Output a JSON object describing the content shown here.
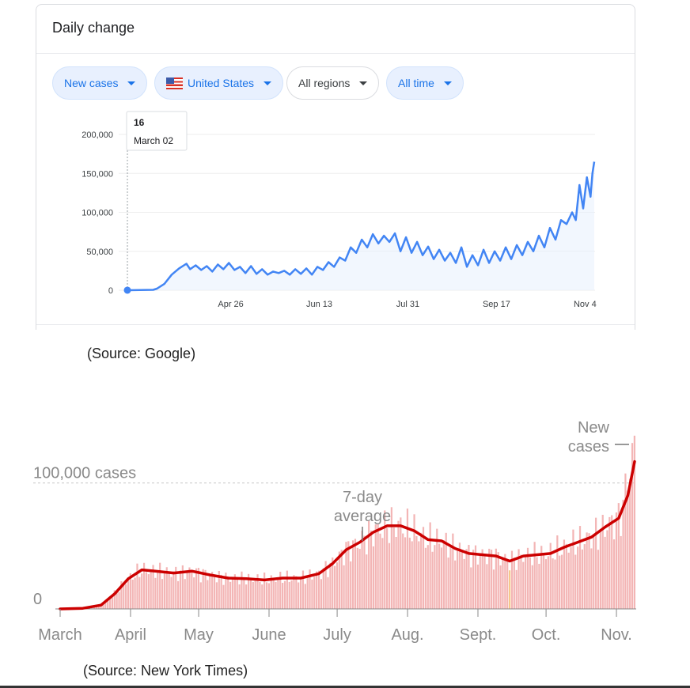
{
  "google_card": {
    "title": "Daily change",
    "filters": [
      {
        "label": "New cases",
        "style": "blue"
      },
      {
        "label": "United States",
        "style": "blue",
        "icon": "us-flag-icon"
      },
      {
        "label": "All regions",
        "style": "white"
      },
      {
        "label": "All time",
        "style": "blue"
      }
    ],
    "tooltip": {
      "value": "16",
      "date": "March 02"
    }
  },
  "google_source": "(Source: Google)",
  "nyt_source": "(Source: New York Times)",
  "colors": {
    "google_line": "#4285f4",
    "google_fill": "#e8f0fe",
    "nyt_line": "#cc0000",
    "nyt_bars": "#f3b5b5",
    "chip_blue_text": "#1a73e8"
  },
  "chart_data": [
    {
      "type": "line",
      "title": "Daily change",
      "ylim": [
        0,
        200000
      ],
      "y_ticks": [
        "0",
        "50,000",
        "100,000",
        "150,000",
        "200,000"
      ],
      "y_tick_values": [
        0,
        50000,
        100000,
        150000,
        200000
      ],
      "x_ticks": [
        "Apr 26",
        "Jun 13",
        "Jul 31",
        "Sep 17",
        "Nov 4"
      ],
      "x_tick_days": [
        56,
        104,
        152,
        200,
        248
      ],
      "grid": true,
      "series": [
        {
          "values_days": [
            0,
            14,
            16,
            20,
            24,
            28,
            32,
            34,
            37,
            40,
            43,
            46,
            49,
            52,
            55,
            58,
            61,
            64,
            67,
            70,
            73,
            76,
            79,
            82,
            85,
            88,
            91,
            94,
            97,
            100,
            103,
            106,
            109,
            112,
            115,
            118,
            121,
            124,
            127,
            130,
            133,
            136,
            139,
            142,
            145,
            148,
            151,
            154,
            157,
            160,
            163,
            166,
            169,
            172,
            175,
            178,
            181,
            184,
            187,
            190,
            193,
            196,
            199,
            202,
            205,
            208,
            211,
            214,
            217,
            220,
            223,
            226,
            229,
            232,
            235,
            238,
            241,
            243,
            245,
            247,
            249,
            251,
            252,
            253
          ],
          "values": [
            16,
            500,
            2000,
            8000,
            20000,
            28000,
            34000,
            27000,
            32000,
            26000,
            31000,
            24000,
            33000,
            27000,
            35000,
            26000,
            30000,
            22000,
            31000,
            21000,
            27000,
            20000,
            24000,
            22000,
            25000,
            20000,
            27000,
            21000,
            28000,
            20000,
            30000,
            26000,
            36000,
            30000,
            42000,
            38000,
            55000,
            48000,
            65000,
            55000,
            72000,
            60000,
            70000,
            62000,
            73000,
            50000,
            68000,
            48000,
            62000,
            45000,
            56000,
            40000,
            52000,
            38000,
            48000,
            35000,
            55000,
            30000,
            45000,
            32000,
            52000,
            35000,
            50000,
            38000,
            55000,
            40000,
            58000,
            45000,
            62000,
            50000,
            70000,
            55000,
            80000,
            65000,
            90000,
            85000,
            100000,
            90000,
            135000,
            105000,
            145000,
            120000,
            150000,
            165000
          ]
        }
      ]
    },
    {
      "type": "bar",
      "ylabel_annotation": "100,000 cases",
      "zero_label": "0",
      "ylim": [
        0,
        135000
      ],
      "y_reference": 100000,
      "x_ticks": [
        "March",
        "April",
        "May",
        "June",
        "July",
        "Aug.",
        "Sept.",
        "Oct.",
        "Nov."
      ],
      "x_tick_days": [
        0,
        31,
        61,
        92,
        122,
        153,
        184,
        214,
        245
      ],
      "annotations": {
        "avg_label_line1": "7-day",
        "avg_label_line2": "average",
        "bars_label_line1": "New",
        "bars_label_line2": "cases"
      },
      "series": [
        {
          "name": "New cases"
        },
        {
          "name": "7-day average",
          "days": [
            0,
            10,
            18,
            24,
            30,
            36,
            42,
            50,
            58,
            66,
            74,
            82,
            90,
            98,
            106,
            114,
            120,
            126,
            132,
            138,
            144,
            150,
            156,
            162,
            168,
            174,
            180,
            186,
            192,
            198,
            204,
            210,
            216,
            222,
            228,
            234,
            240,
            246,
            250,
            253
          ],
          "values": [
            0,
            500,
            3000,
            12000,
            24000,
            31000,
            30000,
            28500,
            30000,
            27000,
            24500,
            24000,
            23000,
            24500,
            24500,
            28000,
            36000,
            47000,
            53000,
            61000,
            66000,
            66000,
            62000,
            55000,
            54000,
            48000,
            44000,
            43000,
            42000,
            38000,
            42000,
            43000,
            44000,
            49000,
            53000,
            57000,
            65000,
            72000,
            90000,
            117000
          ]
        }
      ]
    }
  ]
}
